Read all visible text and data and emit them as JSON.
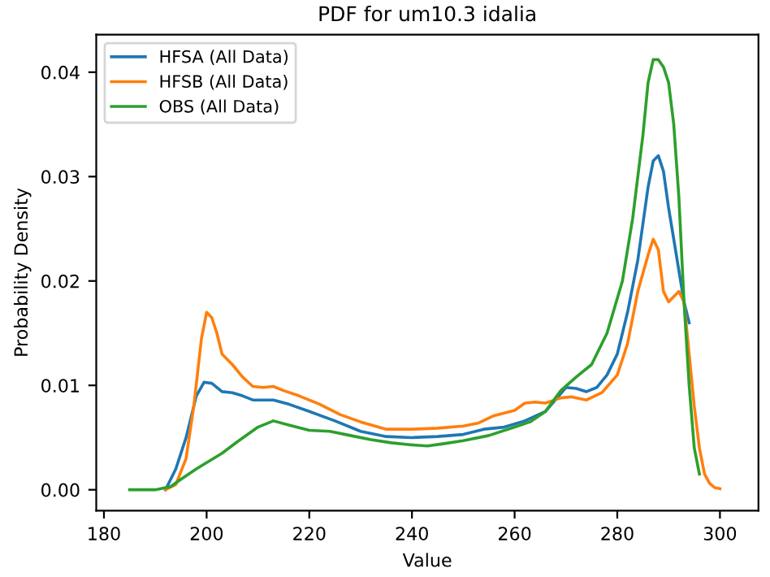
{
  "chart_data": {
    "type": "line",
    "title": "PDF for um10.3 idalia",
    "xlabel": "Value",
    "ylabel": "Probability Density",
    "xlim": [
      178.5,
      307.5
    ],
    "ylim": [
      -0.002,
      0.0436
    ],
    "xticks": [
      180,
      200,
      220,
      240,
      260,
      280,
      300
    ],
    "yticks": [
      {
        "value": 0,
        "label": "0.00"
      },
      {
        "value": 0.01,
        "label": "0.01"
      },
      {
        "value": 0.02,
        "label": "0.02"
      },
      {
        "value": 0.03,
        "label": "0.03"
      },
      {
        "value": 0.04,
        "label": "0.04"
      }
    ],
    "legend": "top left",
    "grid": false,
    "series": [
      {
        "name": "HFSA (All Data)",
        "color": "#1f77b4",
        "x": [
          192,
          194,
          196,
          198,
          199.5,
          201,
          203,
          205,
          207,
          209,
          213,
          216,
          220,
          225,
          230,
          235,
          240,
          245,
          250,
          254,
          258,
          262,
          266,
          270,
          272,
          274,
          276,
          278,
          280,
          282,
          284,
          286,
          287,
          288,
          289,
          290,
          291,
          292,
          293,
          294
        ],
        "values": [
          0,
          0.002,
          0.005,
          0.009,
          0.0103,
          0.0102,
          0.0094,
          0.0093,
          0.009,
          0.0086,
          0.0086,
          0.0082,
          0.0075,
          0.0066,
          0.0056,
          0.0051,
          0.005,
          0.0051,
          0.0053,
          0.0058,
          0.006,
          0.0066,
          0.0075,
          0.0098,
          0.0097,
          0.0094,
          0.0098,
          0.011,
          0.013,
          0.017,
          0.022,
          0.029,
          0.0315,
          0.032,
          0.0305,
          0.027,
          0.024,
          0.021,
          0.018,
          0.016
        ]
      },
      {
        "name": "HFSB (All Data)",
        "color": "#ff7f0e",
        "x": [
          192,
          194,
          196,
          197.5,
          199,
          200,
          201,
          202,
          203,
          205,
          207,
          209,
          211,
          213,
          215,
          218,
          222,
          226,
          230,
          235,
          240,
          245,
          250,
          253,
          256,
          260,
          262,
          264,
          266,
          269,
          271,
          274,
          277,
          280,
          282,
          284,
          286,
          287,
          288,
          289,
          290,
          291,
          292,
          293,
          294,
          295,
          296,
          297,
          298,
          299,
          300
        ],
        "values": [
          0,
          0.0005,
          0.003,
          0.008,
          0.0145,
          0.017,
          0.0165,
          0.015,
          0.013,
          0.012,
          0.0108,
          0.0099,
          0.0098,
          0.0099,
          0.0095,
          0.009,
          0.0082,
          0.0072,
          0.0065,
          0.0058,
          0.0058,
          0.0059,
          0.0061,
          0.0064,
          0.0071,
          0.0076,
          0.0083,
          0.0084,
          0.0083,
          0.0088,
          0.0089,
          0.0086,
          0.0093,
          0.011,
          0.014,
          0.019,
          0.0225,
          0.024,
          0.023,
          0.019,
          0.018,
          0.0185,
          0.019,
          0.018,
          0.013,
          0.008,
          0.004,
          0.0015,
          0.0006,
          0.0002,
          0.0001
        ]
      },
      {
        "name": "OBS (All Data)",
        "color": "#2ca02c",
        "x": [
          185,
          190,
          193,
          195,
          198,
          200,
          203,
          206,
          210,
          213,
          216,
          220,
          224,
          228,
          232,
          236,
          240,
          243,
          246,
          250,
          255,
          260,
          263,
          266,
          269,
          272,
          275,
          278,
          281,
          283,
          285,
          286,
          287,
          288,
          289,
          290,
          291,
          292,
          293,
          294,
          295,
          296
        ],
        "values": [
          0,
          0,
          0.0003,
          0.001,
          0.002,
          0.0026,
          0.0035,
          0.0046,
          0.006,
          0.0066,
          0.0062,
          0.0057,
          0.0056,
          0.0052,
          0.0048,
          0.0045,
          0.0043,
          0.0042,
          0.0044,
          0.0047,
          0.0052,
          0.006,
          0.0065,
          0.0075,
          0.0095,
          0.0108,
          0.012,
          0.015,
          0.02,
          0.026,
          0.034,
          0.039,
          0.0412,
          0.0412,
          0.0405,
          0.039,
          0.035,
          0.028,
          0.018,
          0.01,
          0.004,
          0.0015
        ]
      }
    ]
  }
}
